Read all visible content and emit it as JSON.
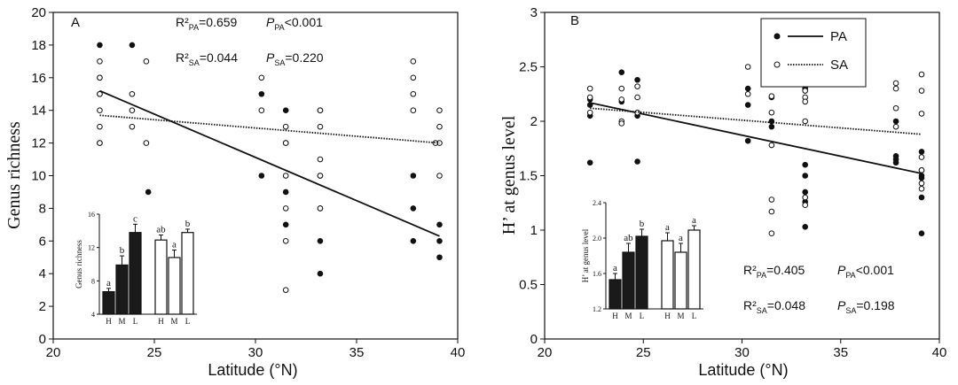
{
  "chart_data": [
    {
      "type": "scatter",
      "panel": "A",
      "xlabel": "Latitude (°N)",
      "ylabel": "Genus richness",
      "xlim": [
        20,
        40
      ],
      "ylim": [
        0,
        20
      ],
      "xticks": [
        "20",
        "25",
        "30",
        "35",
        "40"
      ],
      "yticks": [
        "0",
        "2",
        "4",
        "6",
        "8",
        "10",
        "12",
        "14",
        "16",
        "18",
        "20"
      ],
      "stats": [
        {
          "r2": "R²PA=0.659",
          "p": "PPA<0.001"
        },
        {
          "r2": "R²SA=0.044",
          "p": "PSA=0.220"
        }
      ],
      "series": [
        {
          "name": "PA",
          "marker": "filled",
          "points": [
            [
              22.3,
              18
            ],
            [
              22.3,
              16
            ],
            [
              22.3,
              15
            ],
            [
              22.3,
              12
            ],
            [
              23.9,
              18
            ],
            [
              24.7,
              9
            ],
            [
              30.3,
              15
            ],
            [
              30.3,
              10
            ],
            [
              31.5,
              14
            ],
            [
              31.5,
              12
            ],
            [
              31.5,
              9
            ],
            [
              31.5,
              7
            ],
            [
              33.2,
              14
            ],
            [
              33.2,
              10
            ],
            [
              33.2,
              8
            ],
            [
              33.2,
              6
            ],
            [
              33.2,
              4
            ],
            [
              37.8,
              10
            ],
            [
              37.8,
              8
            ],
            [
              37.8,
              6
            ],
            [
              39.1,
              7
            ],
            [
              39.1,
              6
            ],
            [
              39.1,
              5
            ]
          ],
          "fit": [
            [
              22.3,
              15.2
            ],
            [
              39.1,
              6.3
            ]
          ]
        },
        {
          "name": "SA",
          "marker": "open",
          "points": [
            [
              22.3,
              17
            ],
            [
              22.3,
              16
            ],
            [
              22.3,
              15
            ],
            [
              22.3,
              14
            ],
            [
              22.3,
              13
            ],
            [
              22.3,
              12
            ],
            [
              23.9,
              15
            ],
            [
              23.9,
              14
            ],
            [
              23.9,
              13
            ],
            [
              24.6,
              17
            ],
            [
              24.6,
              12
            ],
            [
              30.3,
              16
            ],
            [
              30.3,
              14
            ],
            [
              31.5,
              13
            ],
            [
              31.5,
              12
            ],
            [
              31.5,
              10
            ],
            [
              31.5,
              8
            ],
            [
              31.5,
              6
            ],
            [
              31.5,
              3
            ],
            [
              33.2,
              14
            ],
            [
              33.2,
              13
            ],
            [
              33.2,
              11
            ],
            [
              33.2,
              10
            ],
            [
              33.2,
              8
            ],
            [
              37.8,
              17
            ],
            [
              37.8,
              16
            ],
            [
              37.8,
              15
            ],
            [
              37.8,
              14
            ],
            [
              39.1,
              14
            ],
            [
              39.1,
              13
            ],
            [
              39.1,
              12
            ],
            [
              39.1,
              10
            ],
            [
              38.9,
              12
            ]
          ],
          "fit": [
            [
              22.3,
              13.7
            ],
            [
              39.1,
              12.0
            ]
          ]
        }
      ],
      "inset": {
        "ylabel": "Genus richness",
        "ylim": [
          4,
          16
        ],
        "yticks": [
          "4",
          "8",
          "12",
          "16"
        ],
        "groups": [
          {
            "fill": "#1a1a1a",
            "bars": [
              {
                "label": "H",
                "value": 6.7,
                "err": 0.4,
                "sig": "a"
              },
              {
                "label": "M",
                "value": 9.9,
                "err": 1.1,
                "sig": "b"
              },
              {
                "label": "L",
                "value": 13.8,
                "err": 1.0,
                "sig": "c"
              }
            ]
          },
          {
            "fill": "#ffffff",
            "bars": [
              {
                "label": "H",
                "value": 12.9,
                "err": 0.6,
                "sig": "ab"
              },
              {
                "label": "M",
                "value": 10.8,
                "err": 0.9,
                "sig": "a"
              },
              {
                "label": "L",
                "value": 13.8,
                "err": 0.4,
                "sig": "b"
              }
            ]
          }
        ]
      }
    },
    {
      "type": "scatter",
      "panel": "B",
      "xlabel": "Latitude (°N)",
      "ylabel": "H’ at genus level",
      "xlim": [
        20,
        40
      ],
      "ylim": [
        0,
        3
      ],
      "xticks": [
        "20",
        "25",
        "30",
        "35",
        "40"
      ],
      "yticks": [
        "0",
        "0.5",
        "1",
        "1.5",
        "2",
        "2.5",
        "3"
      ],
      "legend_position": "top-right",
      "legend": [
        {
          "name": "PA",
          "marker": "filled",
          "line": "solid"
        },
        {
          "name": "SA",
          "marker": "open",
          "line": "dotted"
        }
      ],
      "stats": [
        {
          "r2": "R²PA=0.405",
          "p": "PPA<0.001"
        },
        {
          "r2": "R²SA=0.048",
          "p": "PSA=0.198"
        }
      ],
      "series": [
        {
          "name": "PA",
          "marker": "filled",
          "points": [
            [
              22.3,
              2.2
            ],
            [
              22.3,
              2.15
            ],
            [
              22.3,
              2.05
            ],
            [
              22.3,
              1.62
            ],
            [
              23.9,
              2.45
            ],
            [
              23.9,
              2.18
            ],
            [
              24.7,
              2.38
            ],
            [
              24.7,
              2.05
            ],
            [
              24.7,
              1.63
            ],
            [
              30.3,
              2.3
            ],
            [
              30.3,
              2.15
            ],
            [
              30.3,
              1.82
            ],
            [
              31.5,
              2.22
            ],
            [
              31.5,
              2.0
            ],
            [
              31.5,
              1.95
            ],
            [
              33.2,
              2.3
            ],
            [
              33.2,
              1.6
            ],
            [
              33.2,
              1.5
            ],
            [
              33.2,
              1.35
            ],
            [
              33.2,
              1.26
            ],
            [
              33.2,
              1.03
            ],
            [
              37.8,
              2.0
            ],
            [
              37.8,
              1.68
            ],
            [
              37.8,
              1.65
            ],
            [
              37.8,
              1.62
            ],
            [
              39.1,
              1.72
            ],
            [
              39.1,
              1.55
            ],
            [
              39.1,
              1.5
            ],
            [
              39.1,
              1.48
            ],
            [
              39.1,
              1.3
            ],
            [
              39.1,
              0.97
            ]
          ],
          "fit": [
            [
              22.3,
              2.17
            ],
            [
              39.1,
              1.52
            ]
          ]
        },
        {
          "name": "SA",
          "marker": "open",
          "points": [
            [
              22.3,
              2.3
            ],
            [
              22.3,
              2.22
            ],
            [
              22.3,
              2.08
            ],
            [
              23.9,
              2.3
            ],
            [
              23.9,
              2.2
            ],
            [
              23.9,
              2.0
            ],
            [
              23.9,
              1.98
            ],
            [
              24.7,
              2.32
            ],
            [
              24.7,
              2.22
            ],
            [
              24.7,
              2.08
            ],
            [
              30.3,
              2.5
            ],
            [
              30.3,
              2.25
            ],
            [
              31.5,
              2.23
            ],
            [
              31.5,
              2.08
            ],
            [
              31.5,
              1.78
            ],
            [
              31.5,
              1.28
            ],
            [
              31.5,
              1.17
            ],
            [
              31.5,
              0.97
            ],
            [
              33.2,
              2.28
            ],
            [
              33.2,
              2.22
            ],
            [
              33.2,
              2.18
            ],
            [
              33.2,
              2.0
            ],
            [
              33.2,
              1.3
            ],
            [
              33.2,
              1.23
            ],
            [
              37.8,
              2.35
            ],
            [
              37.8,
              2.3
            ],
            [
              37.8,
              2.12
            ],
            [
              37.8,
              1.95
            ],
            [
              39.1,
              2.43
            ],
            [
              39.1,
              2.28
            ],
            [
              39.1,
              2.07
            ],
            [
              39.1,
              1.67
            ],
            [
              39.1,
              1.55
            ],
            [
              39.1,
              1.43
            ],
            [
              39.1,
              1.38
            ]
          ],
          "fit": [
            [
              22.3,
              2.12
            ],
            [
              39.1,
              1.88
            ]
          ]
        }
      ],
      "inset": {
        "ylabel": "H’ at genus level",
        "ylim": [
          1.2,
          2.4
        ],
        "yticks": [
          "1.2",
          "1.6",
          "2.0",
          "2.4"
        ],
        "groups": [
          {
            "fill": "#1a1a1a",
            "bars": [
              {
                "label": "H",
                "value": 1.53,
                "err": 0.07,
                "sig": "a"
              },
              {
                "label": "M",
                "value": 1.84,
                "err": 0.1,
                "sig": "ab"
              },
              {
                "label": "L",
                "value": 2.02,
                "err": 0.08,
                "sig": "b"
              }
            ]
          },
          {
            "fill": "#ffffff",
            "bars": [
              {
                "label": "H",
                "value": 1.97,
                "err": 0.09,
                "sig": "a"
              },
              {
                "label": "M",
                "value": 1.84,
                "err": 0.1,
                "sig": "a"
              },
              {
                "label": "L",
                "value": 2.09,
                "err": 0.05,
                "sig": "a"
              }
            ]
          }
        ]
      }
    }
  ]
}
